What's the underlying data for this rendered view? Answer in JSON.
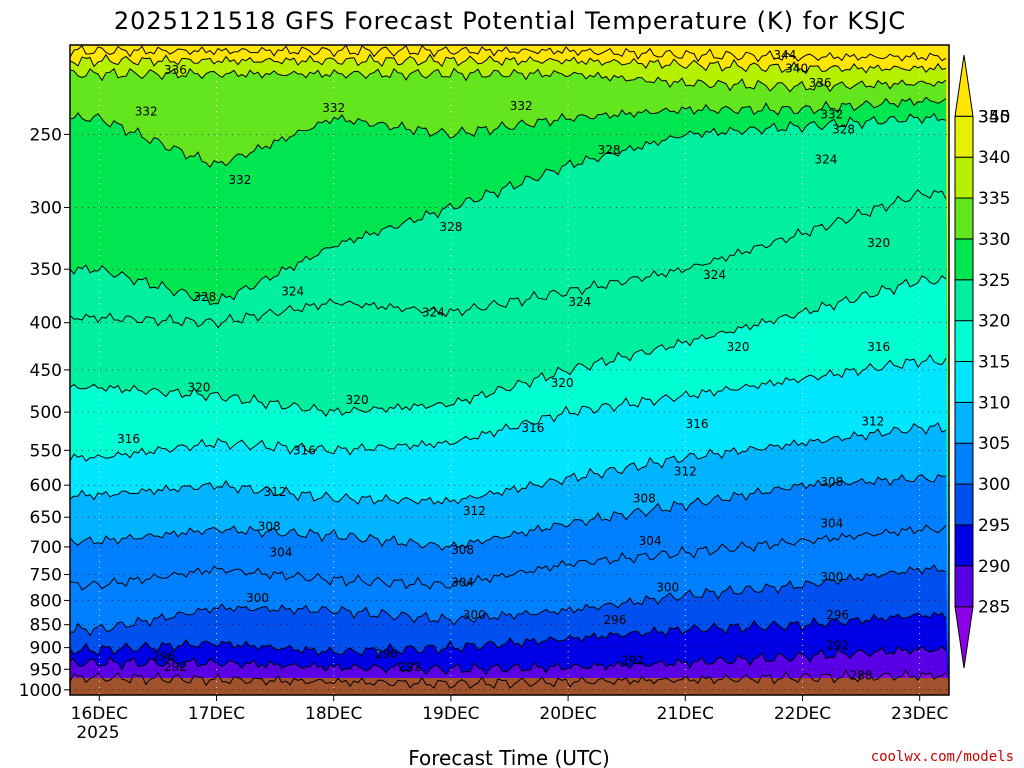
{
  "chart_data": {
    "type": "heatmap",
    "title": "2025121518 GFS Forecast Potential Temperature (K) for KSJC",
    "xlabel": "Forecast Time (UTC)",
    "ylabel": "",
    "x_ticks": [
      "16DEC",
      "17DEC",
      "18DEC",
      "19DEC",
      "20DEC",
      "21DEC",
      "22DEC",
      "23DEC"
    ],
    "x_year_label": "2025",
    "xlim_days": [
      15.75,
      23.25
    ],
    "y_ticks": [
      250,
      300,
      350,
      400,
      450,
      500,
      550,
      600,
      650,
      700,
      750,
      800,
      850,
      900,
      950,
      1000
    ],
    "ylim_hpa": [
      200,
      1013
    ],
    "y_scale": "log",
    "grid": true,
    "colorbar": {
      "levels": [
        285,
        290,
        295,
        300,
        305,
        310,
        315,
        320,
        325,
        330,
        335,
        340,
        345,
        350
      ],
      "colors": [
        "#8c00e6",
        "#5a00e6",
        "#0000e6",
        "#0050f0",
        "#0080ff",
        "#00b4ff",
        "#00e6ff",
        "#00ffd2",
        "#00f0a0",
        "#00e650",
        "#64e61e",
        "#b4f000",
        "#e6f000",
        "#ffe600"
      ],
      "position": "right"
    },
    "contours": [
      {
        "value": 288,
        "p_by_day": [
          970,
          975,
          980,
          985,
          980,
          975,
          970,
          965
        ]
      },
      {
        "value": 292,
        "p_by_day": [
          935,
          935,
          945,
          950,
          945,
          935,
          920,
          905
        ]
      },
      {
        "value": 296,
        "p_by_day": [
          905,
          890,
          910,
          900,
          880,
          860,
          850,
          830
        ]
      },
      {
        "value": 300,
        "p_by_day": [
          860,
          815,
          820,
          840,
          820,
          790,
          770,
          740
        ]
      },
      {
        "value": 304,
        "p_by_day": [
          770,
          740,
          760,
          770,
          730,
          710,
          690,
          670
        ]
      },
      {
        "value": 308,
        "p_by_day": [
          690,
          670,
          680,
          700,
          660,
          630,
          600,
          590
        ]
      },
      {
        "value": 312,
        "p_by_day": [
          615,
          600,
          620,
          625,
          590,
          560,
          540,
          520
        ]
      },
      {
        "value": 316,
        "p_by_day": [
          560,
          540,
          550,
          540,
          500,
          480,
          460,
          440
        ]
      },
      {
        "value": 320,
        "p_by_day": [
          470,
          480,
          500,
          490,
          450,
          420,
          390,
          360
        ]
      },
      {
        "value": 324,
        "p_by_day": [
          395,
          400,
          380,
          390,
          370,
          350,
          320,
          290
        ]
      },
      {
        "value": 328,
        "p_by_day": [
          350,
          380,
          330,
          300,
          270,
          250,
          245,
          240
        ]
      },
      {
        "value": 332,
        "p_by_day": [
          240,
          270,
          240,
          250,
          240,
          235,
          235,
          230
        ]
      },
      {
        "value": 336,
        "p_by_day": [
          215,
          215,
          215,
          215,
          215,
          220,
          222,
          220
        ]
      },
      {
        "value": 340,
        "p_by_day": [
          208,
          208,
          208,
          208,
          208,
          210,
          212,
          212
        ]
      },
      {
        "value": 344,
        "p_by_day": [
          203,
          203,
          203,
          203,
          203,
          205,
          206,
          206
        ]
      }
    ],
    "contour_labels": [
      {
        "text": "336",
        "day": 16.65,
        "p": 213
      },
      {
        "text": "332",
        "day": 16.4,
        "p": 236
      },
      {
        "text": "332",
        "day": 18.0,
        "p": 234
      },
      {
        "text": "332",
        "day": 19.6,
        "p": 233
      },
      {
        "text": "332",
        "day": 17.2,
        "p": 280
      },
      {
        "text": "328",
        "day": 19.0,
        "p": 315
      },
      {
        "text": "328",
        "day": 20.35,
        "p": 260
      },
      {
        "text": "328",
        "day": 22.35,
        "p": 247
      },
      {
        "text": "344",
        "day": 21.85,
        "p": 205
      },
      {
        "text": "340",
        "day": 21.95,
        "p": 212
      },
      {
        "text": "336",
        "day": 22.15,
        "p": 220
      },
      {
        "text": "332",
        "day": 22.25,
        "p": 238
      },
      {
        "text": "324",
        "day": 22.2,
        "p": 266
      },
      {
        "text": "320",
        "day": 22.65,
        "p": 328
      },
      {
        "text": "328",
        "day": 16.9,
        "p": 375
      },
      {
        "text": "324",
        "day": 17.65,
        "p": 370
      },
      {
        "text": "324",
        "day": 18.85,
        "p": 390
      },
      {
        "text": "324",
        "day": 20.1,
        "p": 380
      },
      {
        "text": "324",
        "day": 21.25,
        "p": 355
      },
      {
        "text": "320",
        "day": 21.45,
        "p": 425
      },
      {
        "text": "316",
        "day": 22.65,
        "p": 425
      },
      {
        "text": "320",
        "day": 16.85,
        "p": 470
      },
      {
        "text": "320",
        "day": 18.2,
        "p": 485
      },
      {
        "text": "320",
        "day": 19.95,
        "p": 465
      },
      {
        "text": "316",
        "day": 16.25,
        "p": 535
      },
      {
        "text": "316",
        "day": 17.75,
        "p": 550
      },
      {
        "text": "316",
        "day": 19.7,
        "p": 520
      },
      {
        "text": "316",
        "day": 21.1,
        "p": 515
      },
      {
        "text": "312",
        "day": 22.6,
        "p": 512
      },
      {
        "text": "312",
        "day": 17.5,
        "p": 610
      },
      {
        "text": "312",
        "day": 19.2,
        "p": 640
      },
      {
        "text": "312",
        "day": 21.0,
        "p": 580
      },
      {
        "text": "308",
        "day": 22.25,
        "p": 595
      },
      {
        "text": "308",
        "day": 17.45,
        "p": 665
      },
      {
        "text": "308",
        "day": 19.1,
        "p": 705
      },
      {
        "text": "308",
        "day": 20.65,
        "p": 620
      },
      {
        "text": "304",
        "day": 22.25,
        "p": 660
      },
      {
        "text": "304",
        "day": 17.55,
        "p": 710
      },
      {
        "text": "304",
        "day": 19.1,
        "p": 765
      },
      {
        "text": "304",
        "day": 20.7,
        "p": 690
      },
      {
        "text": "300",
        "day": 17.35,
        "p": 795
      },
      {
        "text": "300",
        "day": 19.2,
        "p": 830
      },
      {
        "text": "300",
        "day": 20.85,
        "p": 775
      },
      {
        "text": "300",
        "day": 22.25,
        "p": 755
      },
      {
        "text": "296",
        "day": 16.55,
        "p": 920
      },
      {
        "text": "296",
        "day": 18.45,
        "p": 915
      },
      {
        "text": "296",
        "day": 20.4,
        "p": 840
      },
      {
        "text": "296",
        "day": 22.3,
        "p": 830
      },
      {
        "text": "292",
        "day": 16.65,
        "p": 945
      },
      {
        "text": "292",
        "day": 18.65,
        "p": 945
      },
      {
        "text": "292",
        "day": 20.55,
        "p": 930
      },
      {
        "text": "292",
        "day": 22.3,
        "p": 895
      },
      {
        "text": "288",
        "day": 22.5,
        "p": 965
      }
    ]
  },
  "credit": "coolwx.com/models"
}
